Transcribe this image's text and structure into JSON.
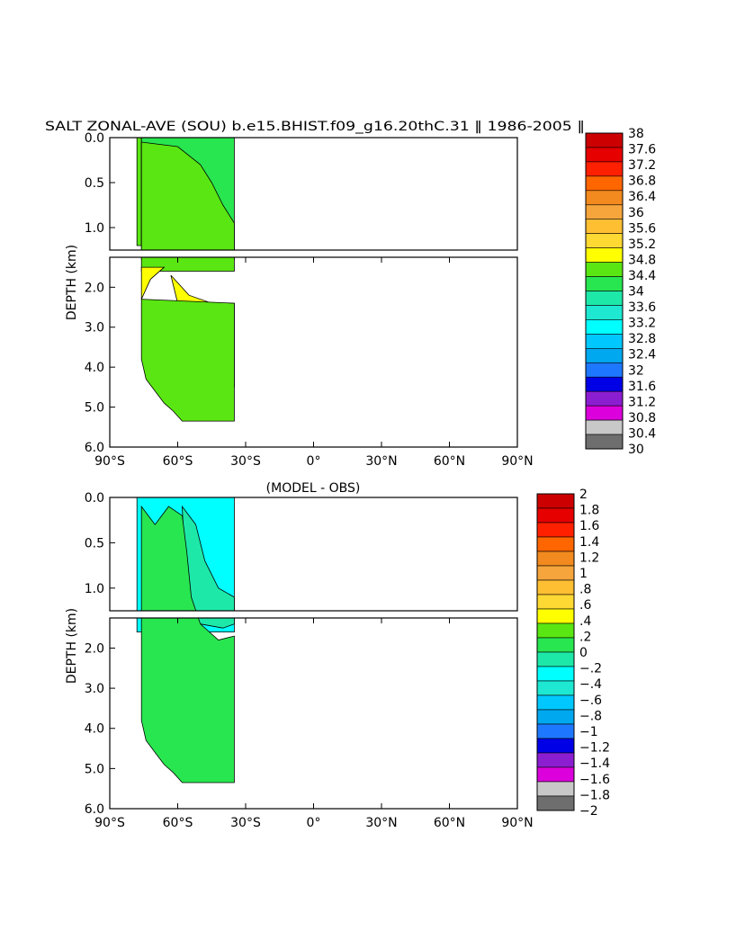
{
  "chart_data": [
    {
      "type": "heatmap",
      "title": "SALT ZONAL-AVE (SOU) b.e15.BHIST.f09_g16.20thC.31 ‖ 1986-2005 ‖",
      "ylabel": "DEPTH (km)",
      "xlabel": "",
      "x_ticks": [
        "90°S",
        "60°S",
        "30°S",
        "0°",
        "30°N",
        "60°N",
        "90°N"
      ],
      "y_ticks_upper": [
        "0.0",
        "0.5",
        "1.0"
      ],
      "y_ticks_lower": [
        "2.0",
        "3.0",
        "4.0",
        "5.0",
        "6.0"
      ],
      "xlim": [
        -90,
        90
      ],
      "ylim": [
        6.0,
        0.0
      ],
      "y_break_km": 1.25,
      "levels": [
        "38",
        "37.6",
        "37.2",
        "36.8",
        "36.4",
        "36",
        "35.6",
        "35.2",
        "34.8",
        "34.4",
        "34",
        "33.6",
        "33.2",
        "32.8",
        "32.4",
        "32",
        "31.6",
        "31.2",
        "30.8",
        "30.4",
        "30"
      ],
      "colors": [
        "#cc0000",
        "#e60000",
        "#ff2000",
        "#ff6600",
        "#f28a1f",
        "#f5a53c",
        "#ffbf33",
        "#ffd933",
        "#ffff00",
        "#5ae612",
        "#28e650",
        "#1ee8a8",
        "#1ee8d2",
        "#00ffff",
        "#00c8ff",
        "#00a8f0",
        "#1e78ff",
        "#0000e6",
        "#8c1ed2",
        "#dc00dc",
        "#c8c8c8",
        "#6e6e6e"
      ],
      "regions": [
        {
          "level_index": 9,
          "polygon": [
            [
              -78,
              0.0
            ],
            [
              -76,
              0.0
            ],
            [
              -76,
              1.2
            ],
            [
              -78,
              1.2
            ]
          ]
        },
        {
          "level_index": 10,
          "polygon": [
            [
              -76,
              0.0
            ],
            [
              -35,
              0.0
            ],
            [
              -35,
              1.3
            ],
            [
              -76,
              1.3
            ]
          ]
        },
        {
          "level_index": 9,
          "polygon": [
            [
              -76,
              0.05
            ],
            [
              -60,
              0.1
            ],
            [
              -50,
              0.3
            ],
            [
              -45,
              0.5
            ],
            [
              -40,
              0.75
            ],
            [
              -35,
              0.95
            ],
            [
              -35,
              1.6
            ],
            [
              -76,
              1.6
            ]
          ]
        },
        {
          "level_index": 8,
          "polygon": [
            [
              -76,
              1.5
            ],
            [
              -66,
              1.5
            ],
            [
              -72,
              1.8
            ],
            [
              -76,
              2.3
            ]
          ]
        },
        {
          "level_index": 8,
          "polygon": [
            [
              -63,
              1.7
            ],
            [
              -55,
              2.2
            ],
            [
              -45,
              2.4
            ],
            [
              -35,
              2.4
            ],
            [
              -35,
              4.5
            ],
            [
              -40,
              4.6
            ],
            [
              -48,
              4.3
            ],
            [
              -55,
              3.5
            ],
            [
              -60,
              2.4
            ]
          ]
        },
        {
          "level_index": 9,
          "polygon": [
            [
              -76,
              2.3
            ],
            [
              -35,
              2.4
            ],
            [
              -35,
              5.35
            ],
            [
              -58,
              5.35
            ],
            [
              -62,
              5.1
            ],
            [
              -66,
              4.9
            ],
            [
              -70,
              4.6
            ],
            [
              -74,
              4.3
            ],
            [
              -76,
              3.8
            ]
          ]
        }
      ]
    },
    {
      "type": "heatmap",
      "title": "(MODEL - OBS)",
      "ylabel": "DEPTH (km)",
      "xlabel": "",
      "x_ticks": [
        "90°S",
        "60°S",
        "30°S",
        "0°",
        "30°N",
        "60°N",
        "90°N"
      ],
      "y_ticks_upper": [
        "0.0",
        "0.5",
        "1.0"
      ],
      "y_ticks_lower": [
        "2.0",
        "3.0",
        "4.0",
        "5.0",
        "6.0"
      ],
      "xlim": [
        -90,
        90
      ],
      "ylim": [
        6.0,
        0.0
      ],
      "y_break_km": 1.25,
      "levels": [
        "2",
        "1.8",
        "1.6",
        "1.4",
        "1.2",
        "1",
        ".8",
        ".6",
        ".4",
        ".2",
        "0",
        "−.2",
        "−.4",
        "−.6",
        "−.8",
        "−1",
        "−1.2",
        "−1.4",
        "−1.6",
        "−1.8",
        "−2"
      ],
      "colors": [
        "#cc0000",
        "#e60000",
        "#ff2000",
        "#ff6600",
        "#f28a1f",
        "#f5a53c",
        "#ffbf33",
        "#ffd933",
        "#ffff00",
        "#5ae612",
        "#28e650",
        "#1ee8a8",
        "#00ffff",
        "#1ee8d2",
        "#00c8ff",
        "#00a8f0",
        "#1e78ff",
        "#0000e6",
        "#8c1ed2",
        "#dc00dc",
        "#c8c8c8",
        "#6e6e6e"
      ],
      "regions": [
        {
          "level_index": 12,
          "polygon": [
            [
              -78,
              0.0
            ],
            [
              -35,
              0.0
            ],
            [
              -35,
              1.6
            ],
            [
              -78,
              1.6
            ]
          ]
        },
        {
          "level_index": 11,
          "polygon": [
            [
              -58,
              0.1
            ],
            [
              -52,
              0.3
            ],
            [
              -48,
              0.7
            ],
            [
              -42,
              1.0
            ],
            [
              -35,
              1.1
            ],
            [
              -35,
              1.4
            ],
            [
              -40,
              1.5
            ],
            [
              -50,
              1.4
            ],
            [
              -56,
              1.2
            ]
          ]
        },
        {
          "level_index": 10,
          "polygon": [
            [
              -76,
              0.1
            ],
            [
              -70,
              0.3
            ],
            [
              -64,
              0.1
            ],
            [
              -58,
              0.2
            ],
            [
              -56,
              0.6
            ],
            [
              -54,
              1.1
            ],
            [
              -50,
              1.4
            ],
            [
              -42,
              1.8
            ],
            [
              -35,
              1.7
            ],
            [
              -35,
              5.35
            ],
            [
              -58,
              5.35
            ],
            [
              -62,
              5.1
            ],
            [
              -66,
              4.9
            ],
            [
              -70,
              4.6
            ],
            [
              -74,
              4.3
            ],
            [
              -76,
              3.8
            ]
          ]
        }
      ]
    }
  ]
}
